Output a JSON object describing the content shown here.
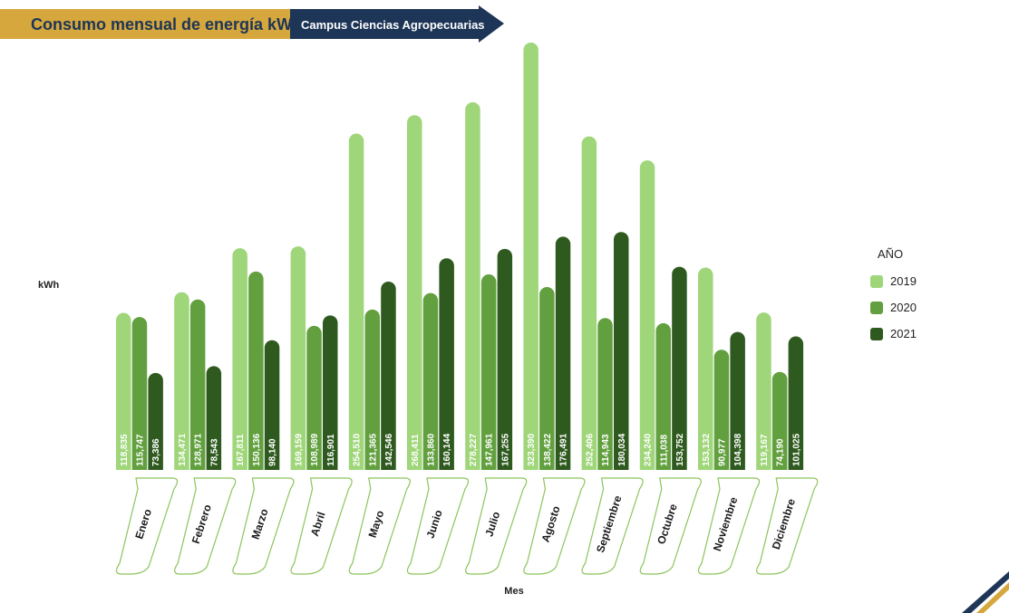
{
  "header": {
    "title": "Consumo mensual de energía kWh",
    "subtitle": "Campus Ciencias Agropecuarias"
  },
  "colors": {
    "header_gold": "#d5a73c",
    "header_navy": "#1d3557",
    "series": [
      "#9fd67a",
      "#62a03f",
      "#2f5a1f"
    ]
  },
  "chart_data": {
    "type": "bar",
    "ylabel": "kWh",
    "xlabel": "Mes",
    "categories": [
      "Enero",
      "Febrero",
      "Marzo",
      "Abril",
      "Mayo",
      "Junio",
      "Julio",
      "Agosto",
      "Septiembre",
      "Octubre",
      "Noviembre",
      "Diciembre"
    ],
    "value_labels": [
      [
        "118,835",
        "115,747",
        "73,386"
      ],
      [
        "134,471",
        "128,971",
        "78,543"
      ],
      [
        "167,811",
        "150,136",
        "98,140"
      ],
      [
        "169,159",
        "108,989",
        "116,901"
      ],
      [
        "254,510",
        "121,365",
        "142,546"
      ],
      [
        "268,411",
        "133,860",
        "160,144"
      ],
      [
        "278,227",
        "147,961",
        "167,255"
      ],
      [
        "323,390",
        "138,422",
        "176,491"
      ],
      [
        "252,406",
        "114,943",
        "180,034"
      ],
      [
        "234,240",
        "111,038",
        "153,752"
      ],
      [
        "153,132",
        "90,977",
        "104,398"
      ],
      [
        "119,167",
        "74,190",
        "101,025"
      ]
    ],
    "legend_title": "AÑO",
    "series": [
      {
        "name": "2019",
        "values": [
          118835,
          134471,
          167811,
          169159,
          254510,
          268411,
          278227,
          323390,
          252406,
          234240,
          153132,
          119167
        ]
      },
      {
        "name": "2020",
        "values": [
          115747,
          128971,
          150136,
          108989,
          121365,
          133860,
          147961,
          138422,
          114943,
          111038,
          90977,
          74190
        ]
      },
      {
        "name": "2021",
        "values": [
          73386,
          78543,
          98140,
          116901,
          142546,
          160144,
          167255,
          176491,
          180034,
          153752,
          104398,
          101025
        ]
      }
    ],
    "ylim": [
      0,
      323390
    ],
    "grid": false,
    "legend_position": "right"
  }
}
